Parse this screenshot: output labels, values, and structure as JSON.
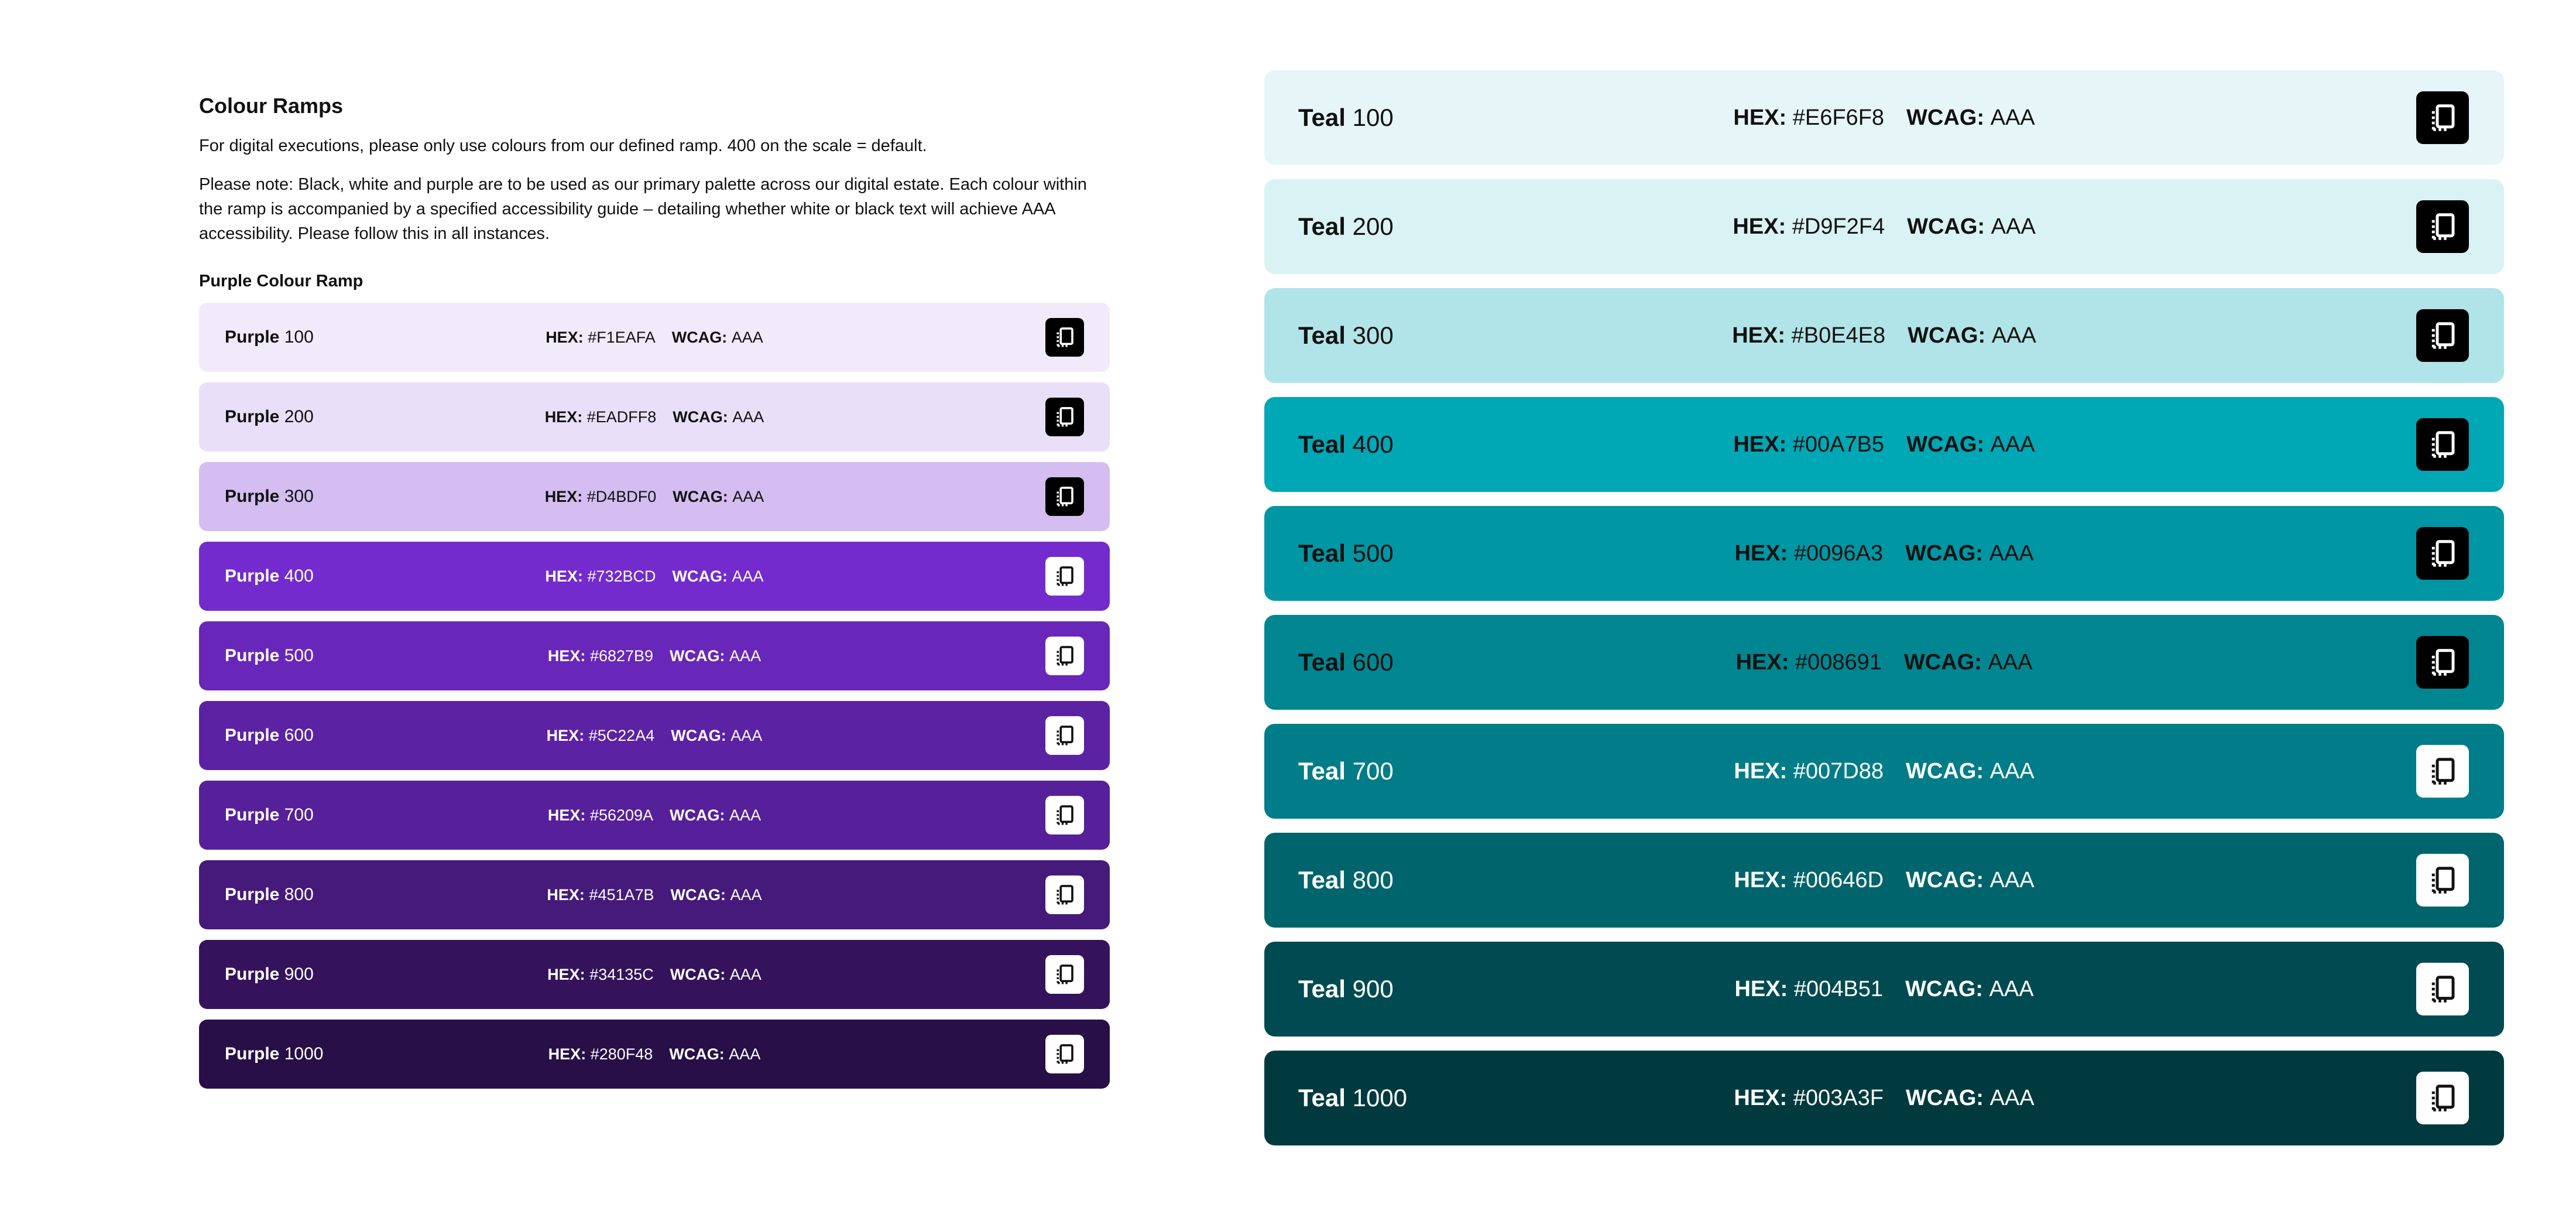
{
  "heading": "Colour Ramps",
  "intro": "For digital executions, please only use colours from our defined ramp. 400 on the scale = default.",
  "note": "Please note: Black, white and purple are to be used as our primary palette across our digital estate. Each colour within the ramp is accompanied by a specified accessibility guide – detailing whether white or black text will achieve AAA accessibility. Please follow this in all instances.",
  "purple_ramp_title": "Purple Colour Ramp",
  "labels": {
    "hex": "HEX:",
    "wcag": "WCAG:"
  },
  "purple": [
    {
      "family": "Purple",
      "level": "100",
      "hex": "#F1EAFA",
      "wcag": "AAA",
      "bg": "#F1EAFA",
      "text": "dark"
    },
    {
      "family": "Purple",
      "level": "200",
      "hex": "#EADFF8",
      "wcag": "AAA",
      "bg": "#EADFF8",
      "text": "dark"
    },
    {
      "family": "Purple",
      "level": "300",
      "hex": "#D4BDF0",
      "wcag": "AAA",
      "bg": "#D4BDF0",
      "text": "dark"
    },
    {
      "family": "Purple",
      "level": "400",
      "hex": "#732BCD",
      "wcag": "AAA",
      "bg": "#732BCD",
      "text": "light"
    },
    {
      "family": "Purple",
      "level": "500",
      "hex": "#6827B9",
      "wcag": "AAA",
      "bg": "#6827B9",
      "text": "light"
    },
    {
      "family": "Purple",
      "level": "600",
      "hex": "#5C22A4",
      "wcag": "AAA",
      "bg": "#5C22A4",
      "text": "light"
    },
    {
      "family": "Purple",
      "level": "700",
      "hex": "#56209A",
      "wcag": "AAA",
      "bg": "#56209A",
      "text": "light"
    },
    {
      "family": "Purple",
      "level": "800",
      "hex": "#451A7B",
      "wcag": "AAA",
      "bg": "#451A7B",
      "text": "light"
    },
    {
      "family": "Purple",
      "level": "900",
      "hex": "#34135C",
      "wcag": "AAA",
      "bg": "#34135C",
      "text": "light"
    },
    {
      "family": "Purple",
      "level": "1000",
      "hex": "#280F48",
      "wcag": "AAA",
      "bg": "#280F48",
      "text": "light"
    }
  ],
  "teal": [
    {
      "family": "Teal",
      "level": "100",
      "hex": "#E6F6F8",
      "wcag": "AAA",
      "bg": "#E6F6F8",
      "text": "dark"
    },
    {
      "family": "Teal",
      "level": "200",
      "hex": "#D9F2F4",
      "wcag": "AAA",
      "bg": "#D9F2F4",
      "text": "dark"
    },
    {
      "family": "Teal",
      "level": "300",
      "hex": "#B0E4E8",
      "wcag": "AAA",
      "bg": "#B0E4E8",
      "text": "dark"
    },
    {
      "family": "Teal",
      "level": "400",
      "hex": "#00A7B5",
      "wcag": "AAA",
      "bg": "#00A7B5",
      "text": "dark"
    },
    {
      "family": "Teal",
      "level": "500",
      "hex": "#0096A3",
      "wcag": "AAA",
      "bg": "#0096A3",
      "text": "dark"
    },
    {
      "family": "Teal",
      "level": "600",
      "hex": "#008691",
      "wcag": "AAA",
      "bg": "#008691",
      "text": "dark"
    },
    {
      "family": "Teal",
      "level": "700",
      "hex": "#007D88",
      "wcag": "AAA",
      "bg": "#007D88",
      "text": "light"
    },
    {
      "family": "Teal",
      "level": "800",
      "hex": "#00646D",
      "wcag": "AAA",
      "bg": "#00646D",
      "text": "light"
    },
    {
      "family": "Teal",
      "level": "900",
      "hex": "#004B51",
      "wcag": "AAA",
      "bg": "#004B51",
      "text": "light"
    },
    {
      "family": "Teal",
      "level": "1000",
      "hex": "#003A3F",
      "wcag": "AAA",
      "bg": "#003A3F",
      "text": "light"
    }
  ],
  "icon": "copy-icon"
}
